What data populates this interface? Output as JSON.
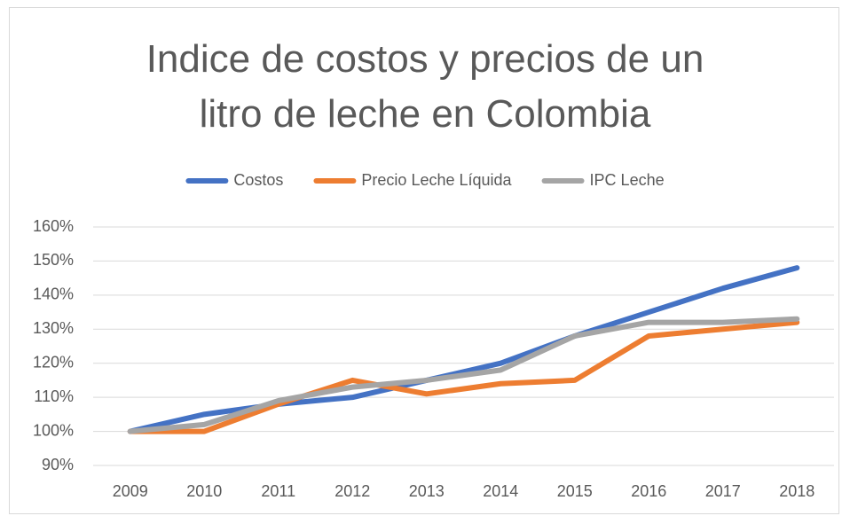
{
  "chart_data": {
    "type": "line",
    "title": "Indice de costos y precios de un litro de leche en Colombia",
    "categories": [
      "2009",
      "2010",
      "2011",
      "2012",
      "2013",
      "2014",
      "2015",
      "2016",
      "2017",
      "2018"
    ],
    "series": [
      {
        "name": "Costos",
        "color": "#4472c4",
        "values": [
          100,
          105,
          108,
          110,
          115,
          120,
          128,
          135,
          142,
          148
        ]
      },
      {
        "name": "Precio Leche Líquida",
        "color": "#ed7d31",
        "values": [
          100,
          100,
          108,
          115,
          111,
          114,
          115,
          128,
          130,
          132
        ]
      },
      {
        "name": "IPC Leche",
        "color": "#a5a5a5",
        "values": [
          100,
          102,
          109,
          113,
          115,
          118,
          128,
          132,
          132,
          133
        ]
      }
    ],
    "ylim": [
      90,
      160
    ],
    "yticks": [
      {
        "value": 90,
        "label": "90%"
      },
      {
        "value": 100,
        "label": "100%"
      },
      {
        "value": 110,
        "label": "110%"
      },
      {
        "value": 120,
        "label": "120%"
      },
      {
        "value": 130,
        "label": "130%"
      },
      {
        "value": 140,
        "label": "140%"
      },
      {
        "value": 150,
        "label": "150%"
      },
      {
        "value": 160,
        "label": "160%"
      }
    ],
    "grid": true,
    "legend": "top"
  }
}
